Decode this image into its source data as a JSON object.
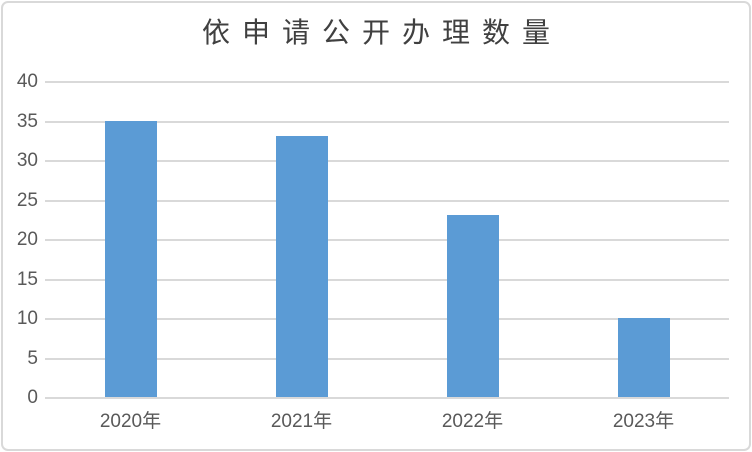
{
  "chart_data": {
    "type": "bar",
    "title": "依申请公开办理数量",
    "categories": [
      "2020年",
      "2021年",
      "2022年",
      "2023年"
    ],
    "values": [
      35,
      33,
      23,
      10
    ],
    "xlabel": "",
    "ylabel": "",
    "ylim": [
      0,
      40
    ],
    "yticks": [
      0,
      5,
      10,
      15,
      20,
      25,
      30,
      35,
      40
    ],
    "grid": true,
    "legend": false,
    "colors": {
      "bar": "#5b9bd5",
      "gridline": "#d9d9d9",
      "frame_border": "#d9d9d9",
      "title_text": "#404040",
      "tick_text": "#595959",
      "background": "#ffffff"
    }
  }
}
